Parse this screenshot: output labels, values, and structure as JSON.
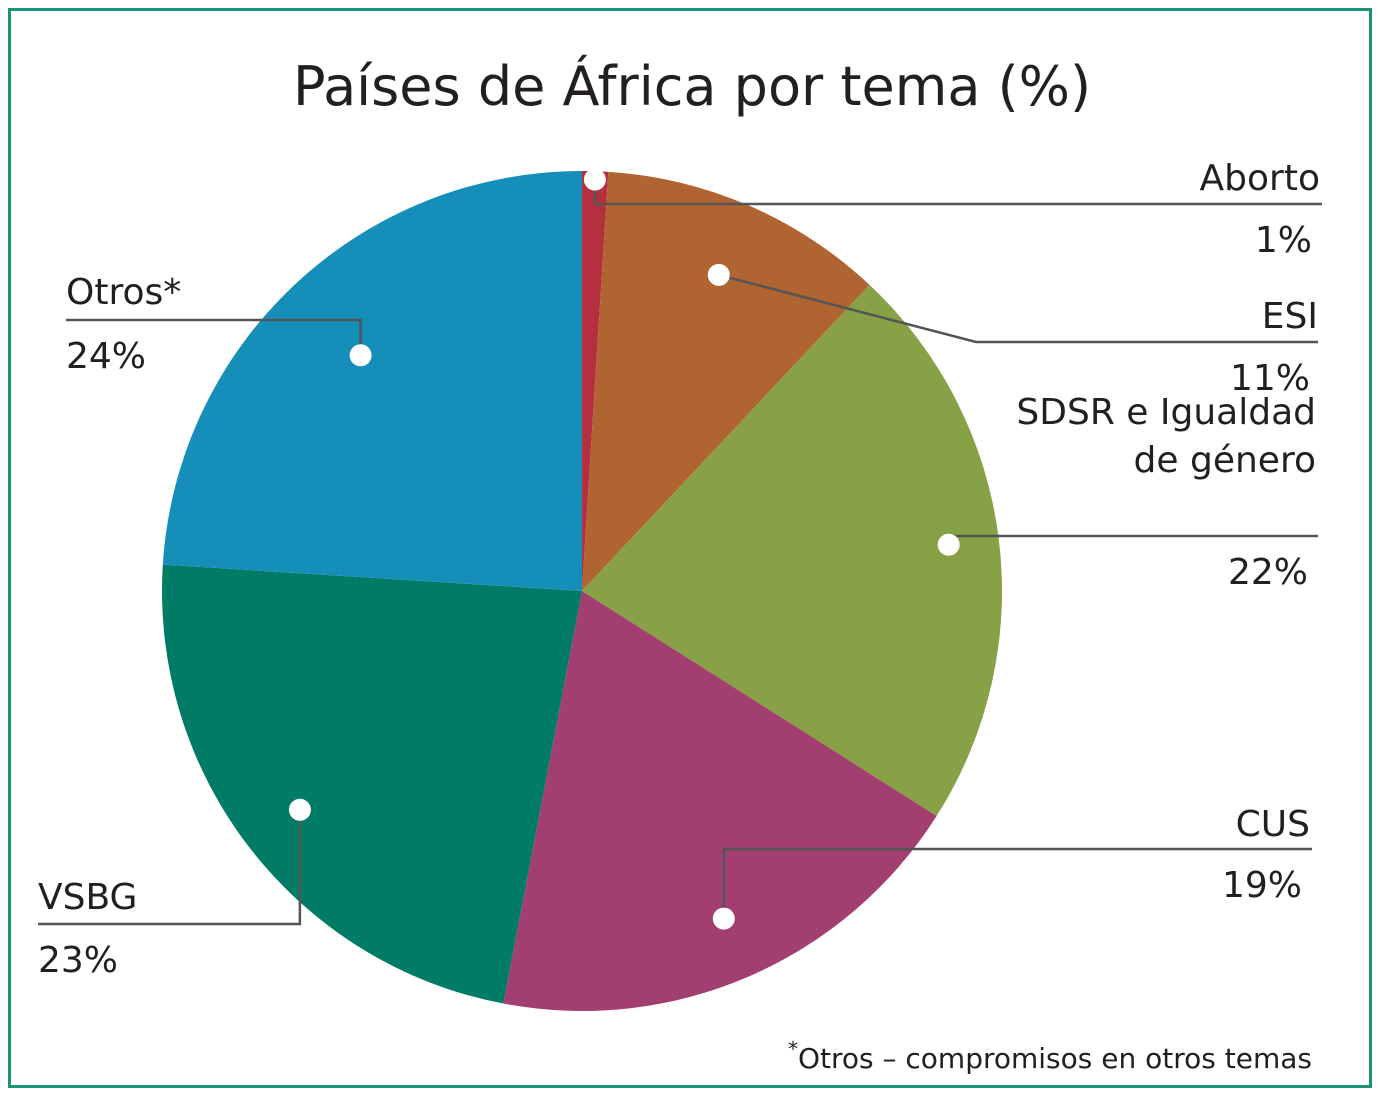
{
  "chart_data": {
    "type": "pie",
    "title": "Países de África por tema (%)",
    "slices": [
      {
        "label": [
          "Aborto"
        ],
        "value": 1,
        "value_label": "1%",
        "color": "#b5303f"
      },
      {
        "label": [
          "ESI"
        ],
        "value": 11,
        "value_label": "11%",
        "color": "#b06431"
      },
      {
        "label": [
          "SDSR e Igualdad",
          "de género"
        ],
        "value": 22,
        "value_label": "22%",
        "color": "#88a046"
      },
      {
        "label": [
          "CUS"
        ],
        "value": 19,
        "value_label": "19%",
        "color": "#a23e70"
      },
      {
        "label": [
          "VSBG"
        ],
        "value": 23,
        "value_label": "23%",
        "color": "#007c66"
      },
      {
        "label": [
          "Otros*"
        ],
        "value": 24,
        "value_label": "24%",
        "color": "#168eba"
      }
    ],
    "footnote_mark": "*",
    "footnote": "Otros – compromisos en otros temas"
  },
  "colors": {
    "border": "#1a9475",
    "leader": "#555555",
    "text": "#231f20"
  }
}
